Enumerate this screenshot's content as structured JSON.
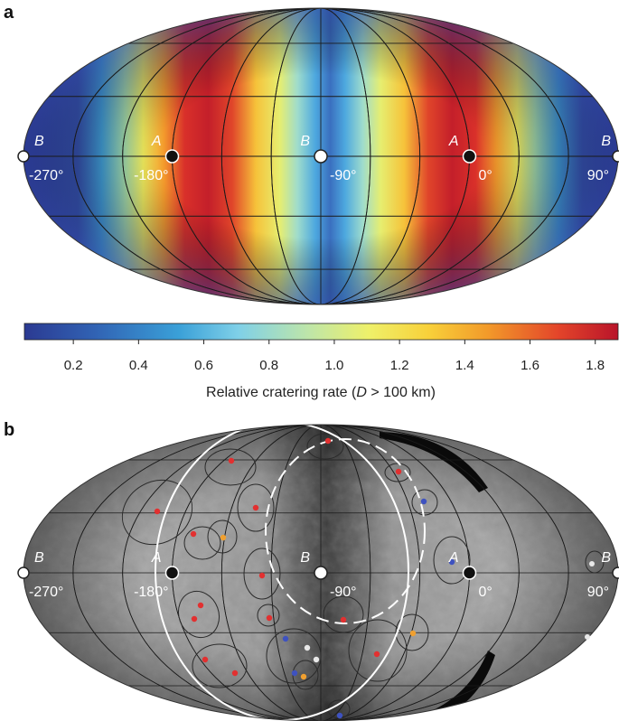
{
  "panel_a": {
    "letter": "a",
    "longitudes": [
      "-270°",
      "-180°",
      "-90°",
      "0°",
      "90°"
    ],
    "points": [
      {
        "name": "B",
        "lon": -270,
        "color": "#ffffff"
      },
      {
        "name": "A",
        "lon": -180,
        "color": "#111111"
      },
      {
        "name": "B",
        "lon": -90,
        "color": "#ffffff"
      },
      {
        "name": "A",
        "lon": 0,
        "color": "#111111"
      },
      {
        "name": "B",
        "lon": 90,
        "color": "#ffffff"
      }
    ]
  },
  "colorbar": {
    "title_prefix": "Relative cratering rate (",
    "title_var": "D",
    "title_suffix": " > 100 km)",
    "ticks": [
      "0.2",
      "0.4",
      "0.6",
      "0.8",
      "1.0",
      "1.2",
      "1.4",
      "1.6",
      "1.8"
    ],
    "tick_values": [
      0.2,
      0.4,
      0.6,
      0.8,
      1.0,
      1.2,
      1.4,
      1.6,
      1.8
    ],
    "range": [
      0.05,
      1.87
    ],
    "colors": [
      "#2b3a92",
      "#3163b4",
      "#3aa0d8",
      "#7fd0e8",
      "#bfe6a8",
      "#eef06a",
      "#f8d13a",
      "#f29a2a",
      "#e3442a",
      "#b9142a"
    ]
  },
  "panel_b": {
    "letter": "b",
    "longitudes": [
      "-270°",
      "-180°",
      "-90°",
      "0°",
      "90°"
    ],
    "points": [
      {
        "name": "B",
        "lon": -270,
        "color": "#ffffff"
      },
      {
        "name": "A",
        "lon": -180,
        "color": "#111111"
      },
      {
        "name": "B",
        "lon": -90,
        "color": "#ffffff"
      },
      {
        "name": "A",
        "lon": 0,
        "color": "#111111"
      },
      {
        "name": "B",
        "lon": 90,
        "color": "#ffffff"
      }
    ]
  }
}
